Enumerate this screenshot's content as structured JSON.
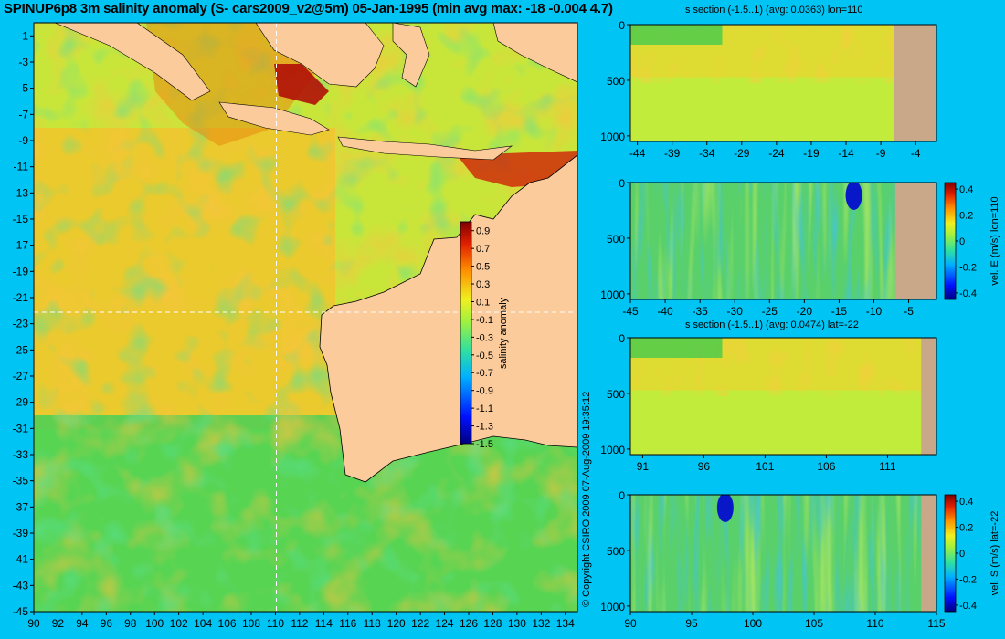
{
  "title": "SPINUP6p8 3m salinity anomaly (S- cars2009_v2@5m) 05-Jan-1995 (min avg max: -18 -0.004 4.7)",
  "copyright": "© Copyright CSIRO 2009   07-Aug-2009 19:35:12",
  "colors": {
    "background": "#00c4f4",
    "land": "#fbcb9b",
    "section_land": "#c8a888",
    "crosshair": "#ffffff"
  },
  "chart_data": [
    {
      "type": "heatmap",
      "name": "map",
      "title": "SPINUP6p8 3m salinity anomaly (S- cars2009_v2@5m) 05-Jan-1995 (min avg max: -18 -0.004 4.7)",
      "xlabel": "",
      "ylabel": "",
      "xlim": [
        90,
        135
      ],
      "ylim": [
        -45,
        0
      ],
      "x_ticks": [
        "90",
        "92",
        "94",
        "96",
        "98",
        "100",
        "102",
        "104",
        "106",
        "108",
        "110",
        "112",
        "114",
        "116",
        "118",
        "120",
        "122",
        "124",
        "126",
        "128",
        "130",
        "132",
        "134"
      ],
      "y_ticks": [
        "-1",
        "-3",
        "-5",
        "-7",
        "-9",
        "-11",
        "-13",
        "-15",
        "-17",
        "-19",
        "-21",
        "-23",
        "-25",
        "-27",
        "-29",
        "-31",
        "-33",
        "-35",
        "-37",
        "-39",
        "-41",
        "-43",
        "-45"
      ],
      "crosshair": {
        "lon": 110,
        "lat": -22
      },
      "colorbar": {
        "label": "salinity anomaly",
        "ticks": [
          "0.9",
          "0.7",
          "0.5",
          "0.3",
          "0.1",
          "-0.1",
          "-0.3",
          "-0.5",
          "-0.7",
          "-0.9",
          "-1.1",
          "-1.3",
          "-1.5"
        ],
        "range": [
          -1.5,
          1.0
        ]
      }
    },
    {
      "type": "heatmap",
      "name": "s-section-lon110",
      "title": "s section (-1.5..1) (avg: 0.0363) lon=110",
      "x_ticks": [
        "-44",
        "-39",
        "-34",
        "-29",
        "-24",
        "-19",
        "-14",
        "-9",
        "-4"
      ],
      "xlim": [
        -45,
        -1
      ],
      "y_ticks": [
        "0",
        "500",
        "1000"
      ],
      "ylim": [
        1050,
        0
      ]
    },
    {
      "type": "heatmap",
      "name": "vel-e-lon110",
      "title": "",
      "x_ticks": [
        "-45",
        "-40",
        "-35",
        "-30",
        "-25",
        "-20",
        "-15",
        "-10",
        "-5"
      ],
      "xlim": [
        -45,
        -1
      ],
      "y_ticks": [
        "0",
        "500",
        "1000"
      ],
      "ylim": [
        1050,
        0
      ],
      "colorbar": {
        "label": "vel. E (m/s) lon=110",
        "ticks": [
          "0.4",
          "0.2",
          "0",
          "-0.2",
          "-0.4"
        ],
        "range": [
          -0.45,
          0.45
        ]
      }
    },
    {
      "type": "heatmap",
      "name": "s-section-lat-22",
      "title": "s section (-1.5..1) (avg: 0.0474) lat=-22",
      "x_ticks": [
        "91",
        "96",
        "101",
        "106",
        "111"
      ],
      "xlim": [
        90,
        115
      ],
      "y_ticks": [
        "0",
        "500",
        "1000"
      ],
      "ylim": [
        1050,
        0
      ]
    },
    {
      "type": "heatmap",
      "name": "vel-s-lat-22",
      "title": "",
      "x_ticks": [
        "90",
        "95",
        "100",
        "105",
        "110",
        "115"
      ],
      "xlim": [
        90,
        115
      ],
      "y_ticks": [
        "0",
        "500",
        "1000"
      ],
      "ylim": [
        1050,
        0
      ],
      "colorbar": {
        "label": "vel. S (m/s) lat=-22",
        "ticks": [
          "0.4",
          "0.2",
          "0",
          "-0.2",
          "-0.4"
        ],
        "range": [
          -0.45,
          0.45
        ]
      }
    }
  ]
}
